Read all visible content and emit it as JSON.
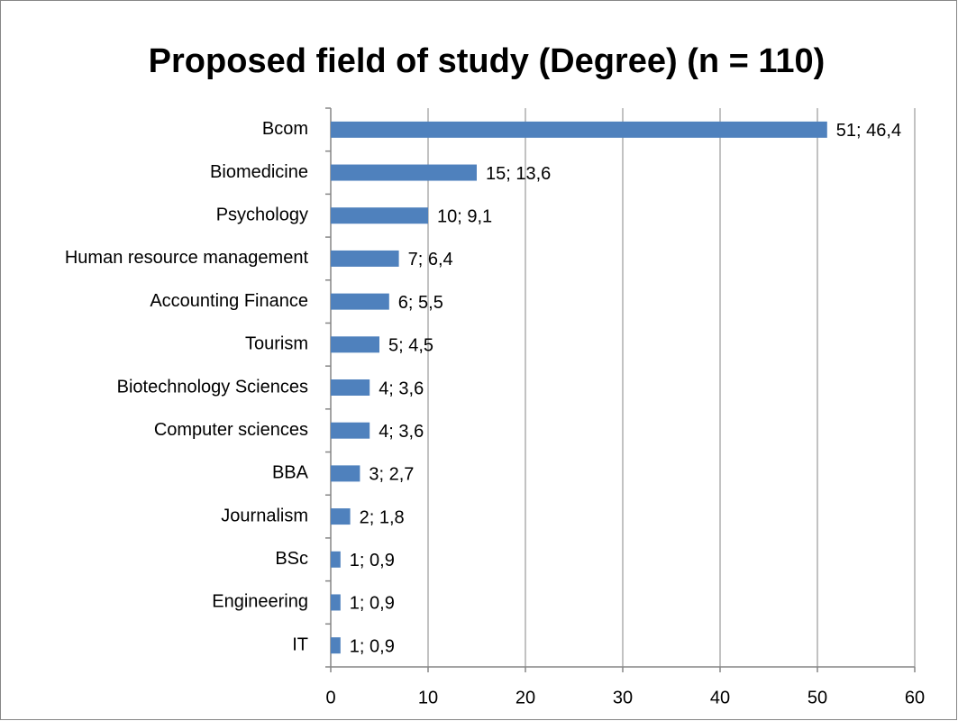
{
  "chart_data": {
    "type": "bar",
    "orientation": "horizontal",
    "title": "Proposed field of study (Degree) (n = 110)",
    "categories": [
      "Bcom",
      "Biomedicine",
      "Psychology",
      "Human resource management",
      "Accounting Finance",
      "Tourism",
      "Biotechnology Sciences",
      "Computer sciences",
      "BBA",
      "Journalism",
      "BSc",
      "Engineering",
      "IT"
    ],
    "values": [
      51,
      15,
      10,
      7,
      6,
      5,
      4,
      4,
      3,
      2,
      1,
      1,
      1
    ],
    "value_labels": [
      "51; 46,4",
      "15; 13,6",
      "10; 9,1",
      "7; 6,4",
      "6; 5,5",
      "5; 4,5",
      "4; 3,6",
      "4; 3,6",
      "3; 2,7",
      "2; 1,8",
      "1; 0,9",
      "1; 0,9",
      "1; 0,9"
    ],
    "color": "#4f81bd",
    "xlim": [
      0,
      60
    ],
    "xticks": [
      0,
      10,
      20,
      30,
      40,
      50,
      60
    ],
    "grid": true
  }
}
